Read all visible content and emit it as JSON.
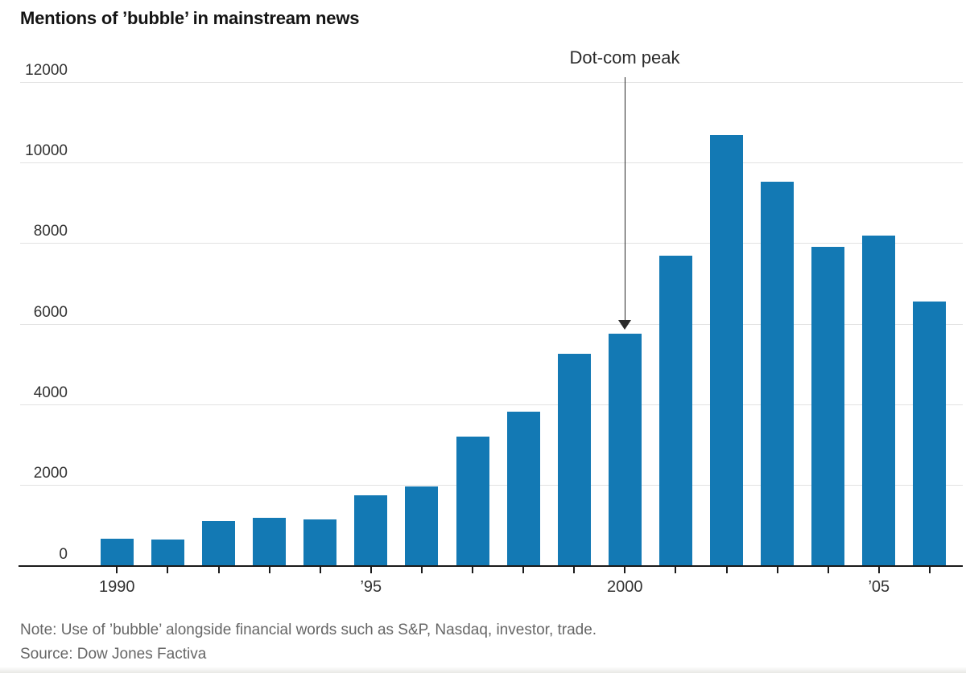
{
  "chart": {
    "title": "Mentions of ’bubble’ in mainstream news",
    "note": "Note: Use of ’bubble’ alongside financial words such as S&P, Nasdaq, investor, trade.",
    "source": "Source: Dow Jones Factiva",
    "annotation": {
      "label": "Dot-com peak",
      "target_year": 2000
    }
  },
  "chart_data": {
    "type": "bar",
    "title": "Mentions of ’bubble’ in mainstream news",
    "categories": [
      1990,
      1991,
      1992,
      1993,
      1994,
      1995,
      1996,
      1997,
      1998,
      1999,
      2000,
      2001,
      2002,
      2003,
      2004,
      2005,
      2006
    ],
    "values": [
      660,
      650,
      1100,
      1190,
      1140,
      1740,
      1960,
      3210,
      3820,
      5260,
      5760,
      7680,
      10680,
      9530,
      7900,
      8190,
      6550
    ],
    "xlabel": "",
    "ylabel": "",
    "ylim": [
      0,
      12000
    ],
    "yticks": [
      0,
      2000,
      4000,
      6000,
      8000,
      10000,
      12000
    ],
    "xtick_labels": [
      {
        "label": "1990",
        "year": 1990
      },
      {
        "label": "’95",
        "year": 1995
      },
      {
        "label": "2000",
        "year": 2000
      },
      {
        "label": "’05",
        "year": 2005
      }
    ],
    "grid": "horizontal",
    "legend": "none",
    "annotation": {
      "label": "Dot-com peak",
      "year": 2000
    },
    "colors": {
      "bar": "#1379b4",
      "grid": "#e2e2e2",
      "axis": "#1a1a1a",
      "tick_text": "#333333",
      "note_text": "#666666",
      "title_text": "#141414",
      "annotation": "#2a2a2a"
    }
  }
}
